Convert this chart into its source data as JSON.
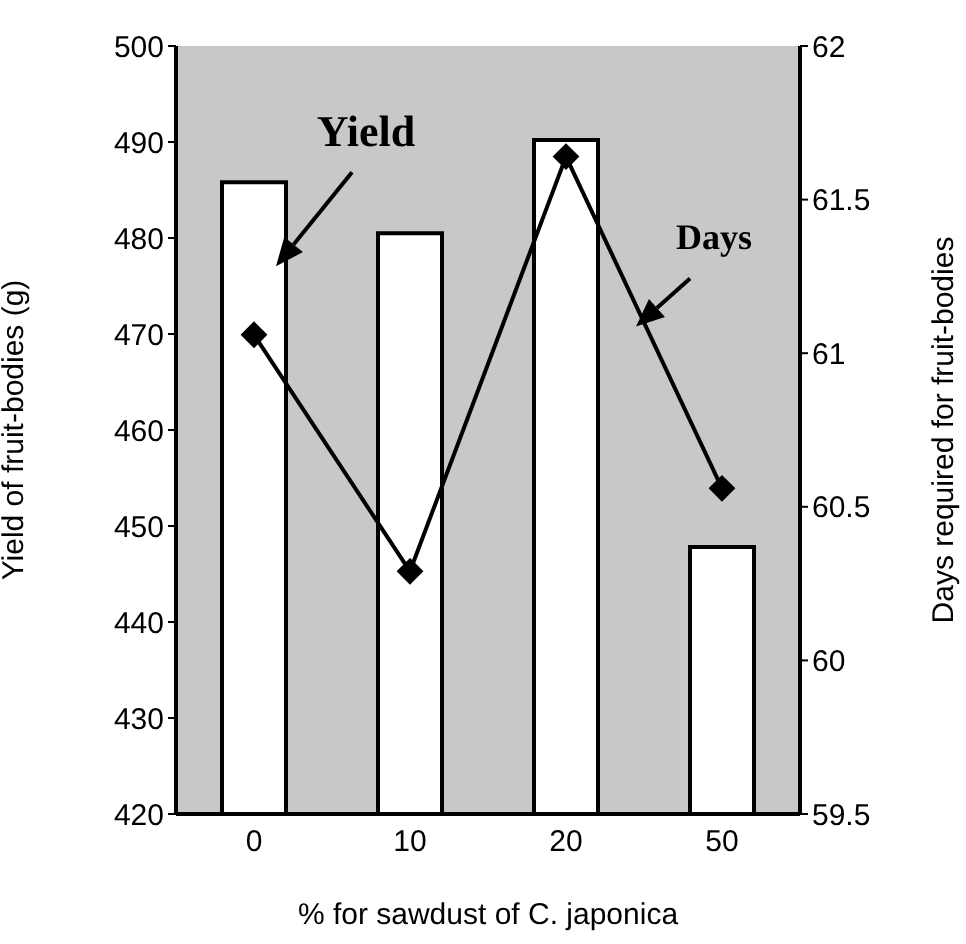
{
  "chart_data": {
    "type": "bar",
    "xlabel": "% for sawdust of C. japonica",
    "ylabel": "Yield of fruit-bodies (g)",
    "y2label": "Days required for fruit-bodies",
    "categories": [
      "0",
      "10",
      "20",
      "50"
    ],
    "series": [
      {
        "name": "Yield",
        "color": "#ffffff",
        "values": [
          485.8,
          480.5,
          490.2,
          447.8
        ]
      },
      {
        "name": "Days",
        "type": "line",
        "axis": "y2",
        "color": "#000000",
        "marker": "diamond",
        "line_style": "solid",
        "values": [
          61.06,
          60.29,
          61.64,
          60.56
        ]
      }
    ],
    "ylim": [
      420,
      500
    ],
    "yticks": [
      420,
      430,
      440,
      450,
      460,
      470,
      480,
      490,
      500
    ],
    "y2lim": [
      59.5,
      62
    ],
    "y2ticks": [
      59.5,
      60,
      60.5,
      61,
      61.5,
      62
    ],
    "grid": false,
    "legend": false
  }
}
